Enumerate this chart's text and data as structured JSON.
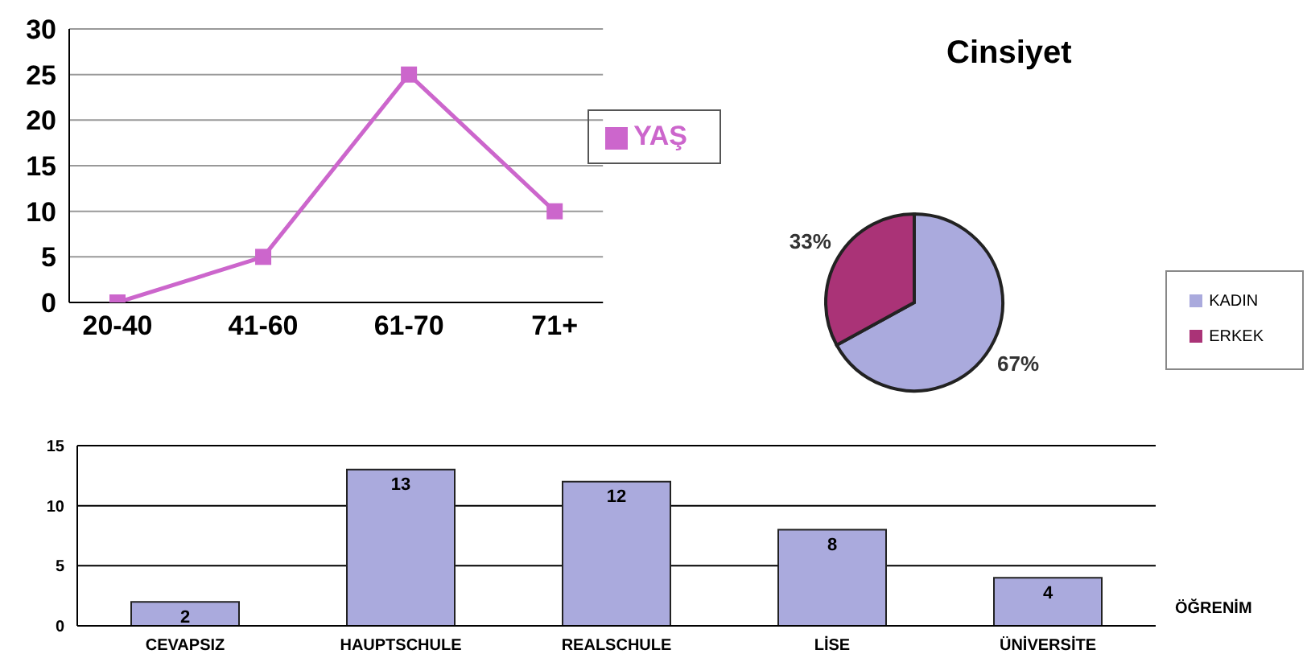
{
  "chart_data": [
    {
      "type": "line",
      "categories": [
        "20-40",
        "41-60",
        "61-70",
        "71+"
      ],
      "series": [
        {
          "name": "YAŞ",
          "color": "#cc66cc",
          "values": [
            0,
            5,
            25,
            10
          ]
        }
      ],
      "ylim": [
        0,
        30
      ],
      "yticks": [
        0,
        5,
        10,
        15,
        20,
        25,
        30
      ],
      "grid": "y",
      "legend": "right",
      "marker": "square"
    },
    {
      "type": "pie",
      "title": "Cinsiyet",
      "categories": [
        "KADIN",
        "ERKEK"
      ],
      "values": [
        67,
        33
      ],
      "colors": [
        "#aaaadd",
        "#aa3377"
      ],
      "value_labels": [
        "67%",
        "33%"
      ],
      "legend": "right"
    },
    {
      "type": "bar",
      "xlabel": "ÖĞRENİM",
      "categories": [
        "CEVAPSIZ",
        "HAUPTSCHULE",
        "REALSCHULE",
        "LİSE",
        "ÜNİVERSİTE"
      ],
      "values": [
        2,
        13,
        12,
        8,
        4
      ],
      "color": "#aaaadd",
      "ylim": [
        0,
        15
      ],
      "yticks": [
        0,
        5,
        10,
        15
      ],
      "grid": "y",
      "data_labels": true
    }
  ]
}
